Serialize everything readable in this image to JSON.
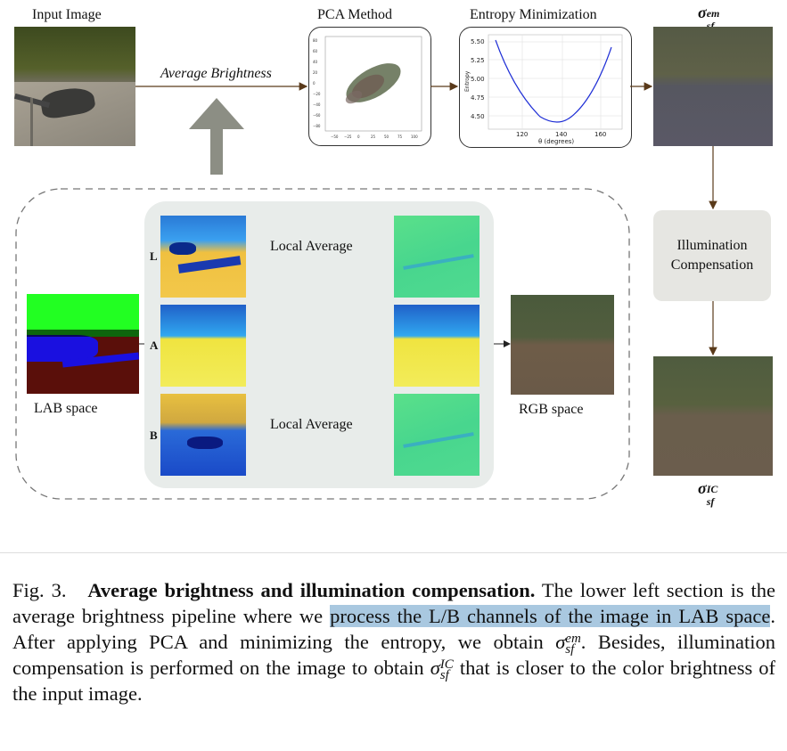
{
  "figure": {
    "input_label": "Input Image",
    "pca_label": "PCA Method",
    "entropy_label": "Entropy Minimization",
    "avg_brightness_label": "Average Brightness",
    "sigma_em": {
      "base": "σ",
      "sup": "em",
      "sub": "sf"
    },
    "sigma_ic": {
      "base": "σ",
      "sup": "IC",
      "sub": "sf"
    },
    "illum_box": "Illumination Compensation",
    "lab_label": "LAB space",
    "rgb_label": "RGB  space",
    "local_avg_1": "Local Average",
    "local_avg_2": "Local Average",
    "channels": [
      "L",
      "A",
      "B"
    ],
    "pca_ticks_x": [
      "−50",
      "−25",
      "0",
      "25",
      "50",
      "75",
      "100"
    ],
    "pca_ticks_y": [
      "80",
      "60",
      "40",
      "20",
      "0",
      "−20",
      "−40",
      "−60",
      "−80"
    ],
    "entropy_ticks_y": [
      "5.50",
      "5.25",
      "5.00",
      "4.75",
      "4.50"
    ],
    "entropy_ticks_x": [
      "120",
      "140",
      "160"
    ],
    "entropy_ylabel": "Entropy",
    "entropy_xlabel": "θ (degrees)"
  },
  "caption": {
    "fig": "Fig. 3.",
    "title": "Average brightness and illumination compensation.",
    "t1": "The lower left section is the average brightness pipeline where we",
    "hl": "process the L/B channels of the image in LAB space",
    "t2": ". After applying PCA and minimizing the entropy, we obtain",
    "t3": ". Besides, illumination compensation is performed on the image to obtain",
    "t4": "that is closer to the color brightness of the input image.",
    "s1": {
      "base": "σ",
      "sup": "em",
      "sub": "sf"
    },
    "s2": {
      "base": "σ",
      "sup": "IC",
      "sub": "sf"
    }
  }
}
